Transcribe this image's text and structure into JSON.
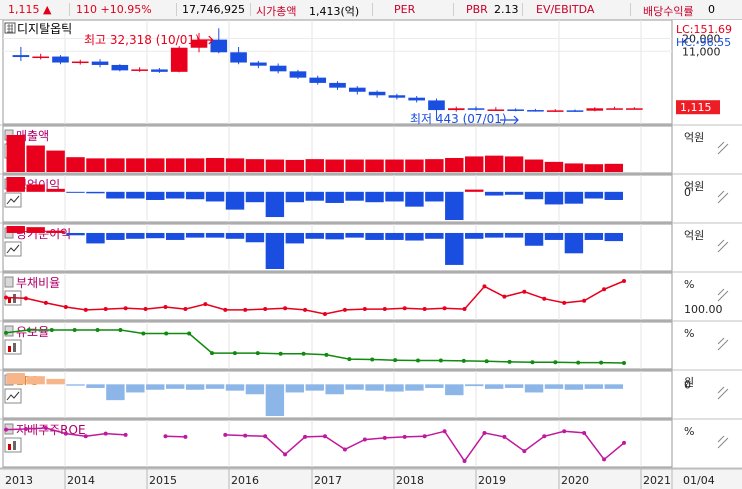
{
  "header": {
    "price": "1,115",
    "change_arrow": "▲",
    "change": "110",
    "change_pct": "+10.95%",
    "volume": "17,746,925",
    "market_cap_label": "시가총액",
    "market_cap": "1,413(억)",
    "per_label": "PER",
    "per_value": "",
    "pbr_label": "PBR",
    "pbr_value": "2.13",
    "ev_label": "EV/EBITDA",
    "ev_value": "",
    "div_label": "배당수익률",
    "div_value": "0"
  },
  "colors": {
    "up": "#e8001c",
    "down": "#1a4ee0",
    "line_red": "#e8001c",
    "line_green": "#108a10",
    "eps_up": "#f7b58a",
    "eps_down": "#8db6e8",
    "roe": "#c0189e",
    "price_box": "#ee1c25"
  },
  "x_axis": {
    "labels": [
      "2013",
      "2014",
      "2015",
      "2016",
      "2017",
      "2018",
      "2019",
      "2020",
      "2021"
    ],
    "end_label": "01/04"
  },
  "chart_data": [
    {
      "type": "candlestick",
      "title": "디지탈옵틱",
      "scale": "log",
      "lc_label": "LC:151.69",
      "hc_label": "HC:-96.55",
      "y_ticks": [
        "20,000",
        "11,000"
      ],
      "current_price_label": "1,115",
      "annotations": {
        "high": "최고 32,318 (10/01)",
        "low": "최저 443 (07/01)"
      },
      "candles": [
        {
          "o": 9200,
          "c": 8400,
          "h": 13500,
          "l": 7000
        },
        {
          "o": 8400,
          "c": 8600,
          "h": 9800,
          "l": 7500
        },
        {
          "o": 8600,
          "c": 6500,
          "h": 9200,
          "l": 6000
        },
        {
          "o": 6500,
          "c": 6800,
          "h": 7400,
          "l": 5900
        },
        {
          "o": 6800,
          "c": 5800,
          "h": 7600,
          "l": 5200
        },
        {
          "o": 5800,
          "c": 4500,
          "h": 6000,
          "l": 4300
        },
        {
          "o": 4500,
          "c": 4700,
          "h": 5200,
          "l": 4200
        },
        {
          "o": 4700,
          "c": 4200,
          "h": 5000,
          "l": 4000
        },
        {
          "o": 4200,
          "c": 13000,
          "h": 14000,
          "l": 4100
        },
        {
          "o": 13000,
          "c": 19000,
          "h": 26000,
          "l": 10500
        },
        {
          "o": 19000,
          "c": 10500,
          "h": 32318,
          "l": 10000
        },
        {
          "o": 10500,
          "c": 6500,
          "h": 13500,
          "l": 6000
        },
        {
          "o": 6500,
          "c": 5600,
          "h": 7000,
          "l": 5000
        },
        {
          "o": 5600,
          "c": 4300,
          "h": 6200,
          "l": 3900
        },
        {
          "o": 4300,
          "c": 3200,
          "h": 4600,
          "l": 3000
        },
        {
          "o": 3200,
          "c": 2500,
          "h": 3500,
          "l": 2300
        },
        {
          "o": 2500,
          "c": 2000,
          "h": 2700,
          "l": 1800
        },
        {
          "o": 2000,
          "c": 1650,
          "h": 2150,
          "l": 1450
        },
        {
          "o": 1650,
          "c": 1400,
          "h": 1750,
          "l": 1250
        },
        {
          "o": 1400,
          "c": 1250,
          "h": 1500,
          "l": 1150
        },
        {
          "o": 1250,
          "c": 1100,
          "h": 1350,
          "l": 1000
        },
        {
          "o": 1100,
          "c": 700,
          "h": 1200,
          "l": 443
        },
        {
          "o": 700,
          "c": 760,
          "h": 820,
          "l": 650
        },
        {
          "o": 760,
          "c": 720,
          "h": 830,
          "l": 680
        },
        {
          "o": 720,
          "c": 720,
          "h": 800,
          "l": 680
        },
        {
          "o": 720,
          "c": 700,
          "h": 760,
          "l": 660
        },
        {
          "o": 700,
          "c": 690,
          "h": 740,
          "l": 650
        },
        {
          "o": 690,
          "c": 690,
          "h": 730,
          "l": 640
        },
        {
          "o": 690,
          "c": 680,
          "h": 720,
          "l": 640
        },
        {
          "o": 680,
          "c": 760,
          "h": 800,
          "l": 660
        },
        {
          "o": 760,
          "c": 760,
          "h": 820,
          "l": 720
        },
        {
          "o": 760,
          "c": 760,
          "h": 800,
          "l": 740
        }
      ]
    },
    {
      "type": "bar",
      "title": "매출액",
      "unit_label": "억원",
      "zero_label": "",
      "values": [
        95,
        68,
        55,
        38,
        35,
        35,
        35,
        35,
        35,
        35,
        36,
        35,
        33,
        32,
        31,
        33,
        32,
        32,
        32,
        32,
        32,
        33,
        36,
        40,
        42,
        40,
        32,
        26,
        22,
        20,
        21
      ]
    },
    {
      "type": "bar",
      "title": "영업이익",
      "unit_label": "억원",
      "zero_label": "0",
      "values": [
        20,
        10,
        4,
        -1,
        -2,
        -9,
        -9,
        -11,
        -9,
        -10,
        -13,
        -24,
        -14,
        -34,
        -14,
        -12,
        -15,
        -12,
        -14,
        -13,
        -20,
        -13,
        -38,
        3,
        -5,
        -4,
        -10,
        -17,
        -16,
        -9,
        -11
      ]
    },
    {
      "type": "bar",
      "title": "당기순이익",
      "unit_label": "억원",
      "zero_label": "",
      "values": [
        12,
        10,
        4,
        -4,
        -18,
        -12,
        -10,
        -9,
        -12,
        -8,
        -8,
        -10,
        -16,
        -62,
        -18,
        -10,
        -11,
        -8,
        -12,
        -12,
        -13,
        -10,
        -55,
        -10,
        -8,
        -8,
        -22,
        -12,
        -35,
        -12,
        -14
      ]
    },
    {
      "type": "line",
      "title": "부채비율",
      "unit_label": "%",
      "tick_label": "100.00",
      "values": [
        68,
        66,
        55,
        45,
        38,
        40,
        42,
        40,
        45,
        40,
        52,
        38,
        38,
        40,
        42,
        38,
        28,
        38,
        40,
        40,
        42,
        40,
        42,
        40,
        95,
        70,
        82,
        65,
        55,
        60,
        88,
        108
      ]
    },
    {
      "type": "line",
      "title": "유보율",
      "unit_label": "%",
      "tick_label": "",
      "values": [
        92,
        100,
        100,
        100,
        100,
        100,
        90,
        90,
        90,
        35,
        35,
        35,
        33,
        33,
        30,
        18,
        17,
        15,
        14,
        14,
        13,
        12,
        10,
        9,
        9,
        8,
        8,
        7
      ]
    },
    {
      "type": "bar",
      "title": "EPS",
      "unit_label": "원",
      "zero_label": "0",
      "values": [
        25,
        18,
        12,
        -3,
        -8,
        -35,
        -18,
        -12,
        -10,
        -12,
        -10,
        -14,
        -22,
        -70,
        -18,
        -14,
        -22,
        -12,
        -14,
        -16,
        -14,
        -8,
        -24,
        -4,
        -10,
        -8,
        -18,
        -10,
        -12,
        -10,
        -10
      ]
    },
    {
      "type": "line",
      "title": "지배주주ROE",
      "unit_label": "%",
      "tick_label": "",
      "values": [
        40,
        42,
        45,
        28,
        20,
        28,
        24,
        null,
        20,
        18,
        null,
        24,
        22,
        20,
        -35,
        18,
        20,
        -20,
        10,
        15,
        18,
        20,
        35,
        -55,
        30,
        18,
        -25,
        20,
        35,
        30,
        -50,
        0
      ]
    }
  ]
}
